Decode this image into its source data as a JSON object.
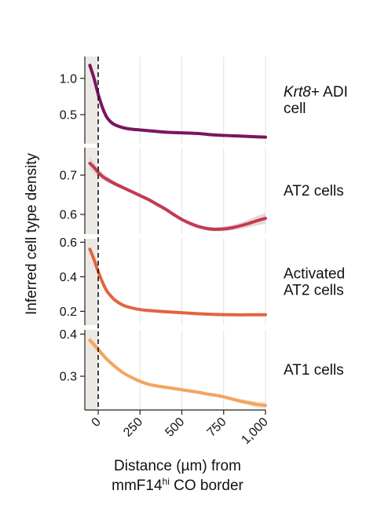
{
  "chart_data": {
    "type": "line",
    "ylabel": "Inferred cell type density",
    "xlabel_line1": "Distance (µm) from",
    "xlabel_line2": {
      "pre": "mmF14",
      "sup": "hi",
      "post": " CO border"
    },
    "xlim": [
      -80,
      1000
    ],
    "xticks": [
      0,
      250,
      500,
      750,
      1000
    ],
    "xtick_labels": [
      "0",
      "250",
      "500",
      "750",
      "1,000"
    ],
    "border_x": 0,
    "grid": "vertical",
    "panels": [
      {
        "label_lines": [
          {
            "italic": "Krt8",
            "rest": "+ ADI"
          },
          {
            "italic": "",
            "rest": "cell"
          }
        ],
        "color": "#7a1560",
        "band_color": "#b889a8",
        "ylim": [
          0.1,
          1.3
        ],
        "yticks": [
          0.5,
          1.0
        ],
        "ytick_labels": [
          "0.5",
          "1.0"
        ],
        "x": [
          -50,
          -25,
          0,
          25,
          50,
          75,
          100,
          150,
          200,
          250,
          300,
          400,
          500,
          600,
          700,
          800,
          900,
          1000
        ],
        "y": [
          1.18,
          1.0,
          0.78,
          0.6,
          0.47,
          0.4,
          0.36,
          0.32,
          0.3,
          0.29,
          0.28,
          0.26,
          0.25,
          0.24,
          0.22,
          0.21,
          0.2,
          0.19
        ],
        "band": [
          0.02,
          0.02,
          0.02,
          0.02,
          0.02,
          0.02,
          0.02,
          0.02,
          0.02,
          0.02,
          0.02,
          0.02,
          0.02,
          0.02,
          0.02,
          0.02,
          0.02,
          0.02
        ]
      },
      {
        "label_lines": [
          {
            "italic": "",
            "rest": "AT2 cells"
          }
        ],
        "color": "#c43a50",
        "band_color": "#d8c4c8",
        "ylim": [
          0.55,
          0.77
        ],
        "yticks": [
          0.6,
          0.7
        ],
        "ytick_labels": [
          "0.6",
          "0.7"
        ],
        "x": [
          -50,
          -25,
          0,
          25,
          50,
          100,
          150,
          200,
          250,
          300,
          350,
          400,
          450,
          500,
          550,
          600,
          650,
          700,
          750,
          800,
          850,
          900,
          950,
          1000
        ],
        "y": [
          0.73,
          0.72,
          0.707,
          0.697,
          0.69,
          0.678,
          0.668,
          0.658,
          0.648,
          0.638,
          0.626,
          0.614,
          0.6,
          0.587,
          0.577,
          0.569,
          0.564,
          0.562,
          0.563,
          0.566,
          0.571,
          0.577,
          0.584,
          0.59
        ],
        "band": [
          0.015,
          0.013,
          0.011,
          0.009,
          0.008,
          0.006,
          0.005,
          0.005,
          0.005,
          0.005,
          0.005,
          0.005,
          0.005,
          0.005,
          0.005,
          0.005,
          0.005,
          0.005,
          0.006,
          0.007,
          0.008,
          0.01,
          0.012,
          0.014
        ]
      },
      {
        "label_lines": [
          {
            "italic": "",
            "rest": "Activated"
          },
          {
            "italic": "",
            "rest": "AT2 cells"
          }
        ],
        "color": "#e3643f",
        "band_color": "#e8c0b0",
        "ylim": [
          0.12,
          0.62
        ],
        "yticks": [
          0.2,
          0.4,
          0.6
        ],
        "ytick_labels": [
          "0.2",
          "0.4",
          "0.6"
        ],
        "x": [
          -50,
          -25,
          0,
          25,
          50,
          75,
          100,
          150,
          200,
          250,
          300,
          400,
          500,
          600,
          700,
          800,
          900,
          1000
        ],
        "y": [
          0.56,
          0.5,
          0.43,
          0.37,
          0.32,
          0.29,
          0.265,
          0.235,
          0.22,
          0.21,
          0.205,
          0.198,
          0.192,
          0.186,
          0.182,
          0.18,
          0.18,
          0.18
        ],
        "band": [
          0.01,
          0.01,
          0.01,
          0.008,
          0.008,
          0.008,
          0.007,
          0.007,
          0.007,
          0.007,
          0.007,
          0.007,
          0.007,
          0.007,
          0.007,
          0.007,
          0.007,
          0.007
        ]
      },
      {
        "label_lines": [
          {
            "italic": "",
            "rest": "AT1 cells"
          }
        ],
        "color": "#f2a55e",
        "band_color": "#f4d4b8",
        "ylim": [
          0.22,
          0.41
        ],
        "yticks": [
          0.3,
          0.4
        ],
        "ytick_labels": [
          "0.3",
          "0.4"
        ],
        "x": [
          -50,
          -25,
          0,
          25,
          50,
          100,
          150,
          200,
          250,
          300,
          350,
          400,
          450,
          500,
          550,
          600,
          650,
          700,
          750,
          800,
          850,
          900,
          950,
          1000
        ],
        "y": [
          0.385,
          0.375,
          0.363,
          0.352,
          0.341,
          0.323,
          0.308,
          0.297,
          0.288,
          0.281,
          0.277,
          0.274,
          0.271,
          0.268,
          0.265,
          0.262,
          0.258,
          0.255,
          0.251,
          0.246,
          0.241,
          0.237,
          0.233,
          0.231
        ],
        "band": [
          0.01,
          0.009,
          0.008,
          0.007,
          0.006,
          0.005,
          0.004,
          0.004,
          0.004,
          0.004,
          0.004,
          0.004,
          0.004,
          0.004,
          0.004,
          0.004,
          0.004,
          0.004,
          0.004,
          0.004,
          0.005,
          0.006,
          0.007,
          0.008
        ]
      }
    ]
  }
}
